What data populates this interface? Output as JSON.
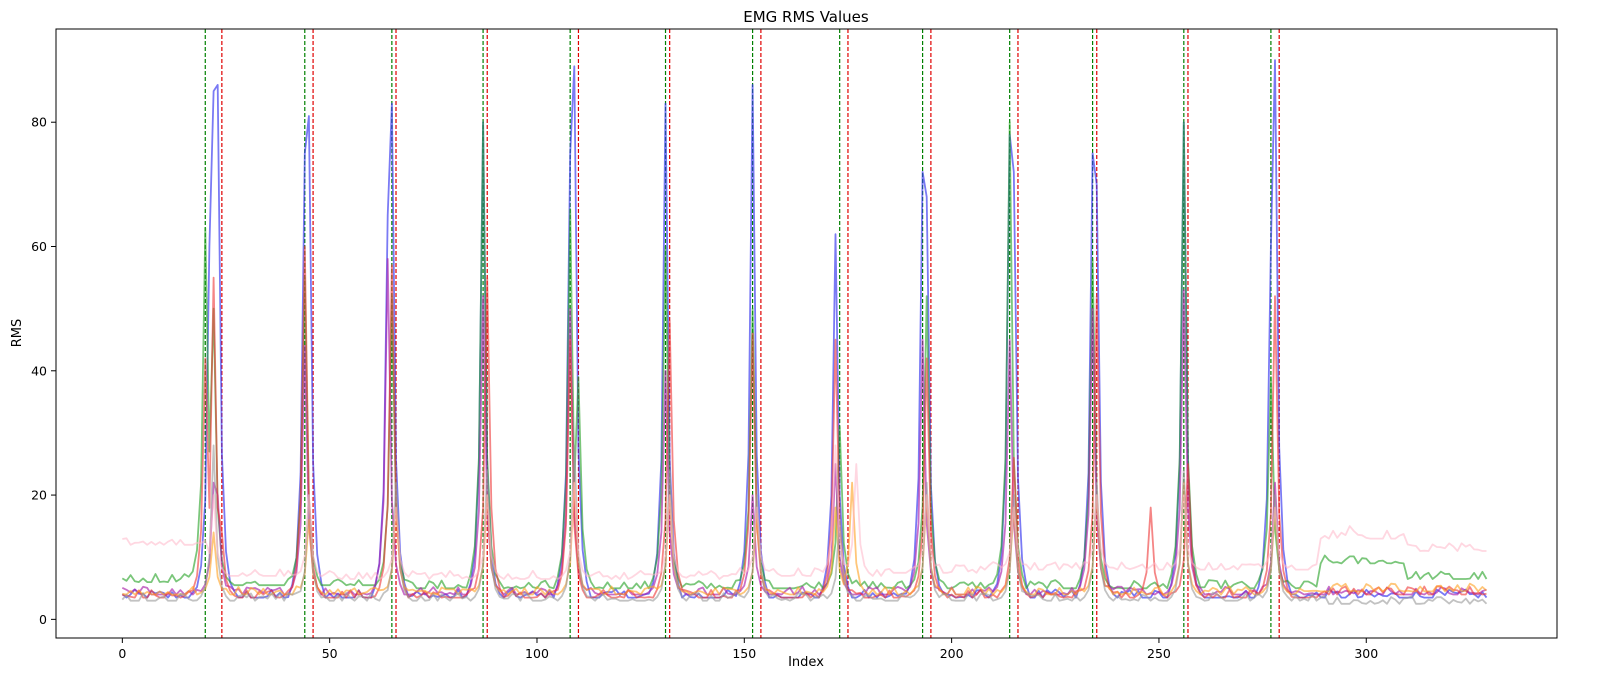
{
  "chart_data": {
    "type": "line",
    "title": "EMG RMS Values",
    "xlabel": "Index",
    "ylabel": "RMS",
    "xlim": [
      -16,
      346
    ],
    "ylim": [
      -3,
      95
    ],
    "x_ticks": [
      0,
      50,
      100,
      150,
      200,
      250,
      300
    ],
    "y_ticks": [
      0,
      20,
      40,
      60,
      80
    ],
    "grid": false,
    "n_points": 330,
    "colors": {
      "onset": "#008000",
      "offset": "#e00000"
    },
    "onset_lines": [
      20,
      44,
      65,
      87,
      108,
      131,
      152,
      173,
      193,
      214,
      234,
      256,
      277
    ],
    "offset_lines": [
      24,
      46,
      66,
      88,
      110,
      132,
      154,
      175,
      195,
      216,
      235,
      257,
      279
    ],
    "series": [
      {
        "color": "#3333ee",
        "opacity": 0.65,
        "baseline": [
          3.5,
          3.5,
          3.5,
          3.5,
          3.5,
          3.5,
          3.5,
          3.5,
          3.5,
          3.5,
          3.5,
          3.5,
          3.5,
          3.5,
          3.5,
          3.5
        ],
        "peaks": [
          {
            "x": 21,
            "y": 60
          },
          {
            "x": 22,
            "y": 85
          },
          {
            "x": 23,
            "y": 86
          },
          {
            "x": 44,
            "y": 75
          },
          {
            "x": 45,
            "y": 81
          },
          {
            "x": 64,
            "y": 65
          },
          {
            "x": 65,
            "y": 83
          },
          {
            "x": 87,
            "y": 80
          },
          {
            "x": 108,
            "y": 75
          },
          {
            "x": 109,
            "y": 89
          },
          {
            "x": 131,
            "y": 83
          },
          {
            "x": 152,
            "y": 86
          },
          {
            "x": 172,
            "y": 62
          },
          {
            "x": 193,
            "y": 72
          },
          {
            "x": 194,
            "y": 68
          },
          {
            "x": 214,
            "y": 78
          },
          {
            "x": 215,
            "y": 72
          },
          {
            "x": 234,
            "y": 75
          },
          {
            "x": 235,
            "y": 70
          },
          {
            "x": 256,
            "y": 80
          },
          {
            "x": 277,
            "y": 60
          },
          {
            "x": 278,
            "y": 90
          }
        ]
      },
      {
        "color": "#22a022",
        "opacity": 0.6,
        "baseline": [
          6,
          5.5,
          5.5,
          5,
          5,
          5,
          5,
          5,
          5,
          5,
          5,
          5,
          5,
          5,
          9,
          6.5
        ],
        "peaks": [
          {
            "x": 20,
            "y": 63
          },
          {
            "x": 21,
            "y": 27
          },
          {
            "x": 22,
            "y": 50
          },
          {
            "x": 44,
            "y": 55
          },
          {
            "x": 65,
            "y": 52
          },
          {
            "x": 87,
            "y": 80
          },
          {
            "x": 108,
            "y": 66
          },
          {
            "x": 110,
            "y": 39
          },
          {
            "x": 131,
            "y": 60
          },
          {
            "x": 152,
            "y": 50
          },
          {
            "x": 173,
            "y": 31
          },
          {
            "x": 194,
            "y": 52
          },
          {
            "x": 214,
            "y": 80
          },
          {
            "x": 234,
            "y": 58
          },
          {
            "x": 256,
            "y": 80
          },
          {
            "x": 277,
            "y": 39
          }
        ]
      },
      {
        "color": "#aa22aa",
        "opacity": 0.65,
        "baseline": [
          4,
          4,
          4,
          4,
          4,
          4,
          4,
          4,
          4,
          4,
          4,
          4,
          4,
          4,
          4,
          4
        ],
        "peaks": [
          {
            "x": 22,
            "y": 22
          },
          {
            "x": 23,
            "y": 20
          },
          {
            "x": 44,
            "y": 44
          },
          {
            "x": 64,
            "y": 58
          },
          {
            "x": 87,
            "y": 52
          },
          {
            "x": 108,
            "y": 50
          },
          {
            "x": 131,
            "y": 40
          },
          {
            "x": 152,
            "y": 20
          },
          {
            "x": 172,
            "y": 25
          },
          {
            "x": 193,
            "y": 45
          },
          {
            "x": 214,
            "y": 45
          },
          {
            "x": 234,
            "y": 50
          },
          {
            "x": 256,
            "y": 53
          },
          {
            "x": 278,
            "y": 22
          }
        ]
      },
      {
        "color": "#ee3333",
        "opacity": 0.6,
        "baseline": [
          3.5,
          3.5,
          3.5,
          3.5,
          3.5,
          3.5,
          3.5,
          3.5,
          3.5,
          3.5,
          3.5,
          3.5,
          3.5,
          3.5,
          4,
          4
        ],
        "peaks": [
          {
            "x": 20,
            "y": 42
          },
          {
            "x": 22,
            "y": 55
          },
          {
            "x": 24,
            "y": 14
          },
          {
            "x": 44,
            "y": 60
          },
          {
            "x": 65,
            "y": 57
          },
          {
            "x": 88,
            "y": 55
          },
          {
            "x": 108,
            "y": 45
          },
          {
            "x": 132,
            "y": 48
          },
          {
            "x": 152,
            "y": 46
          },
          {
            "x": 172,
            "y": 45
          },
          {
            "x": 194,
            "y": 42
          },
          {
            "x": 215,
            "y": 26
          },
          {
            "x": 235,
            "y": 52
          },
          {
            "x": 248,
            "y": 18
          },
          {
            "x": 257,
            "y": 25
          },
          {
            "x": 278,
            "y": 52
          }
        ]
      },
      {
        "color": "#ffa020",
        "opacity": 0.6,
        "baseline": [
          4,
          4,
          4,
          4,
          4,
          4,
          4,
          4,
          4,
          4,
          4,
          4,
          4,
          4,
          4.5,
          4.5
        ],
        "peaks": [
          {
            "x": 22,
            "y": 14
          },
          {
            "x": 45,
            "y": 16
          },
          {
            "x": 66,
            "y": 18
          },
          {
            "x": 88,
            "y": 20
          },
          {
            "x": 109,
            "y": 22
          },
          {
            "x": 132,
            "y": 20
          },
          {
            "x": 153,
            "y": 17
          },
          {
            "x": 172,
            "y": 18
          },
          {
            "x": 176,
            "y": 22
          },
          {
            "x": 194,
            "y": 20
          },
          {
            "x": 215,
            "y": 18
          },
          {
            "x": 235,
            "y": 20
          },
          {
            "x": 256,
            "y": 22
          },
          {
            "x": 278,
            "y": 18
          }
        ]
      },
      {
        "color": "#999999",
        "opacity": 0.6,
        "baseline": [
          3,
          3,
          3,
          3,
          3,
          3,
          3,
          3,
          3,
          3,
          3,
          3,
          3,
          3,
          2.5,
          2.5
        ],
        "peaks": [
          {
            "x": 22,
            "y": 28
          },
          {
            "x": 45,
            "y": 20
          },
          {
            "x": 66,
            "y": 22
          },
          {
            "x": 88,
            "y": 24
          },
          {
            "x": 109,
            "y": 28
          },
          {
            "x": 132,
            "y": 24
          },
          {
            "x": 153,
            "y": 20
          },
          {
            "x": 173,
            "y": 16
          },
          {
            "x": 194,
            "y": 22
          },
          {
            "x": 215,
            "y": 20
          },
          {
            "x": 235,
            "y": 22
          },
          {
            "x": 256,
            "y": 24
          },
          {
            "x": 278,
            "y": 20
          }
        ]
      },
      {
        "color": "#ffb6c8",
        "opacity": 0.55,
        "baseline": [
          12,
          7,
          6.5,
          6.5,
          6.5,
          6.5,
          6.5,
          7,
          7,
          7.5,
          8,
          8,
          8,
          8,
          13,
          11
        ],
        "peaks": [
          {
            "x": 22,
            "y": 20
          },
          {
            "x": 45,
            "y": 20
          },
          {
            "x": 66,
            "y": 18
          },
          {
            "x": 88,
            "y": 20
          },
          {
            "x": 109,
            "y": 22
          },
          {
            "x": 132,
            "y": 20
          },
          {
            "x": 153,
            "y": 18
          },
          {
            "x": 172,
            "y": 28
          },
          {
            "x": 177,
            "y": 25
          },
          {
            "x": 194,
            "y": 20
          },
          {
            "x": 215,
            "y": 18
          },
          {
            "x": 235,
            "y": 20
          },
          {
            "x": 256,
            "y": 20
          },
          {
            "x": 278,
            "y": 18
          },
          {
            "x": 296,
            "y": 15
          }
        ]
      }
    ]
  }
}
